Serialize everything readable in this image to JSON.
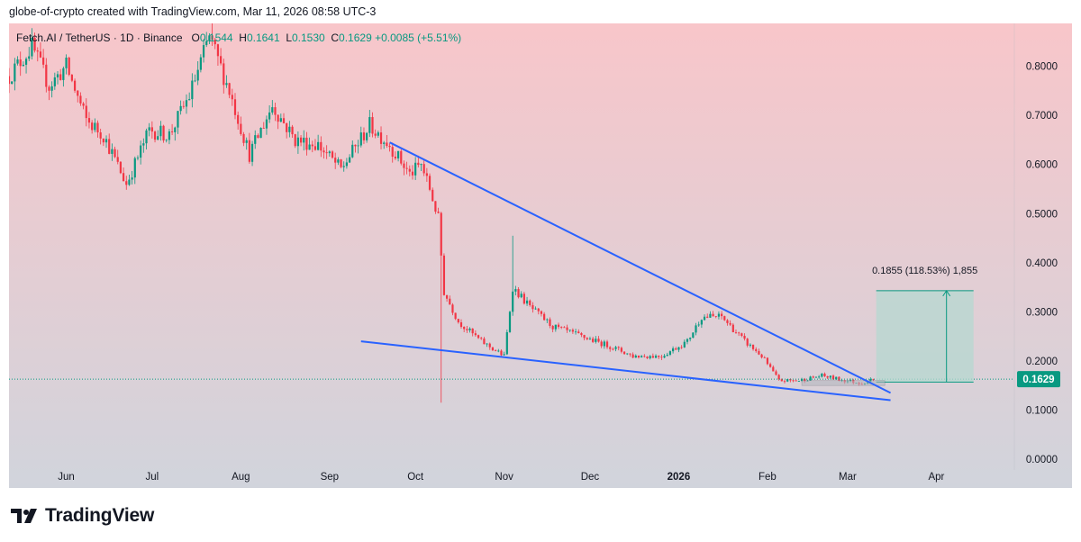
{
  "header": {
    "attribution": "globe-of-crypto created with TradingView.com, Mar 11, 2026 08:58 UTC-3"
  },
  "symbol": {
    "name": "Fetch.AI / TetherUS · 1D · Binance",
    "o_label": "O",
    "o": "0.1544",
    "h_label": "H",
    "h": "0.1641",
    "l_label": "L",
    "l": "0.1530",
    "c_label": "C",
    "c": "0.1629",
    "change": "+0.0085 (+5.51%)"
  },
  "price_axis": {
    "ticks": [
      "0.8000",
      "0.7000",
      "0.6000",
      "0.5000",
      "0.4000",
      "0.3000",
      "0.2000",
      "0.1000",
      "0.0000"
    ],
    "current_price_label": "0.1629"
  },
  "time_axis": {
    "ticks": [
      "Jun",
      "Jul",
      "Aug",
      "Sep",
      "Oct",
      "Nov",
      "Dec",
      "2026",
      "Feb",
      "Mar",
      "Apr"
    ]
  },
  "measurement": {
    "label": "0.1855 (118.53%) 1,855"
  },
  "brand": {
    "name": "TradingView"
  },
  "colors": {
    "up": "#089981",
    "down": "#f23645",
    "trendline": "#2962ff",
    "bg_top": "#f8c6ca",
    "bg_bottom": "#d1d4dc",
    "target_box": "#b5d8d0"
  },
  "chart_data": {
    "type": "candlestick",
    "symbol": "FETUSDT",
    "timeframe": "1D",
    "x_unit": "date",
    "y_unit": "USDT",
    "ylim": [
      0,
      0.88
    ],
    "x_range": [
      "2025-05-12",
      "2026-04-27"
    ],
    "grid": false,
    "price_path": [
      [
        "2025-05-12",
        0.78
      ],
      [
        "2025-05-20",
        0.84
      ],
      [
        "2025-05-26",
        0.76
      ],
      [
        "2025-06-01",
        0.8
      ],
      [
        "2025-06-08",
        0.69
      ],
      [
        "2025-06-14",
        0.66
      ],
      [
        "2025-06-22",
        0.56
      ],
      [
        "2025-06-30",
        0.67
      ],
      [
        "2025-07-07",
        0.66
      ],
      [
        "2025-07-14",
        0.74
      ],
      [
        "2025-07-21",
        0.86
      ],
      [
        "2025-07-28",
        0.75
      ],
      [
        "2025-08-04",
        0.62
      ],
      [
        "2025-08-12",
        0.72
      ],
      [
        "2025-08-20",
        0.65
      ],
      [
        "2025-08-28",
        0.64
      ],
      [
        "2025-09-05",
        0.59
      ],
      [
        "2025-09-15",
        0.68
      ],
      [
        "2025-09-22",
        0.64
      ],
      [
        "2025-09-29",
        0.58
      ],
      [
        "2025-10-03",
        0.6
      ],
      [
        "2025-10-06",
        0.55
      ],
      [
        "2025-10-09",
        0.49
      ],
      [
        "2025-10-11",
        0.34
      ],
      [
        "2025-10-16",
        0.28
      ],
      [
        "2025-10-24",
        0.24
      ],
      [
        "2025-11-01",
        0.21
      ],
      [
        "2025-11-04",
        0.35
      ],
      [
        "2025-11-10",
        0.31
      ],
      [
        "2025-11-18",
        0.27
      ],
      [
        "2025-11-28",
        0.25
      ],
      [
        "2025-12-08",
        0.23
      ],
      [
        "2025-12-16",
        0.21
      ],
      [
        "2025-12-26",
        0.21
      ],
      [
        "2026-01-04",
        0.24
      ],
      [
        "2026-01-09",
        0.29
      ],
      [
        "2026-01-16",
        0.29
      ],
      [
        "2026-01-24",
        0.24
      ],
      [
        "2026-01-30",
        0.21
      ],
      [
        "2026-02-05",
        0.16
      ],
      [
        "2026-02-12",
        0.16
      ],
      [
        "2026-02-20",
        0.17
      ],
      [
        "2026-02-28",
        0.16
      ],
      [
        "2026-03-06",
        0.155
      ],
      [
        "2026-03-10",
        0.1629
      ]
    ],
    "wicks": [
      {
        "date": "2025-07-22",
        "high": 0.89
      },
      {
        "date": "2025-10-10",
        "low": 0.115
      },
      {
        "date": "2025-11-04",
        "high": 0.455
      }
    ],
    "drawings": {
      "upper_trendline": [
        [
          "2025-09-22",
          0.645
        ],
        [
          "2026-03-16",
          0.135
        ]
      ],
      "lower_trendline": [
        [
          "2025-09-12",
          0.24
        ],
        [
          "2026-03-16",
          0.12
        ]
      ],
      "projection": {
        "from": [
          "2026-03-11",
          0.157
        ],
        "to": [
          "2026-04-14",
          0.343
        ]
      },
      "consolidation_box": {
        "from": [
          "2026-02-13",
          0.16
        ],
        "to": [
          "2026-03-14",
          0.15
        ]
      }
    }
  }
}
